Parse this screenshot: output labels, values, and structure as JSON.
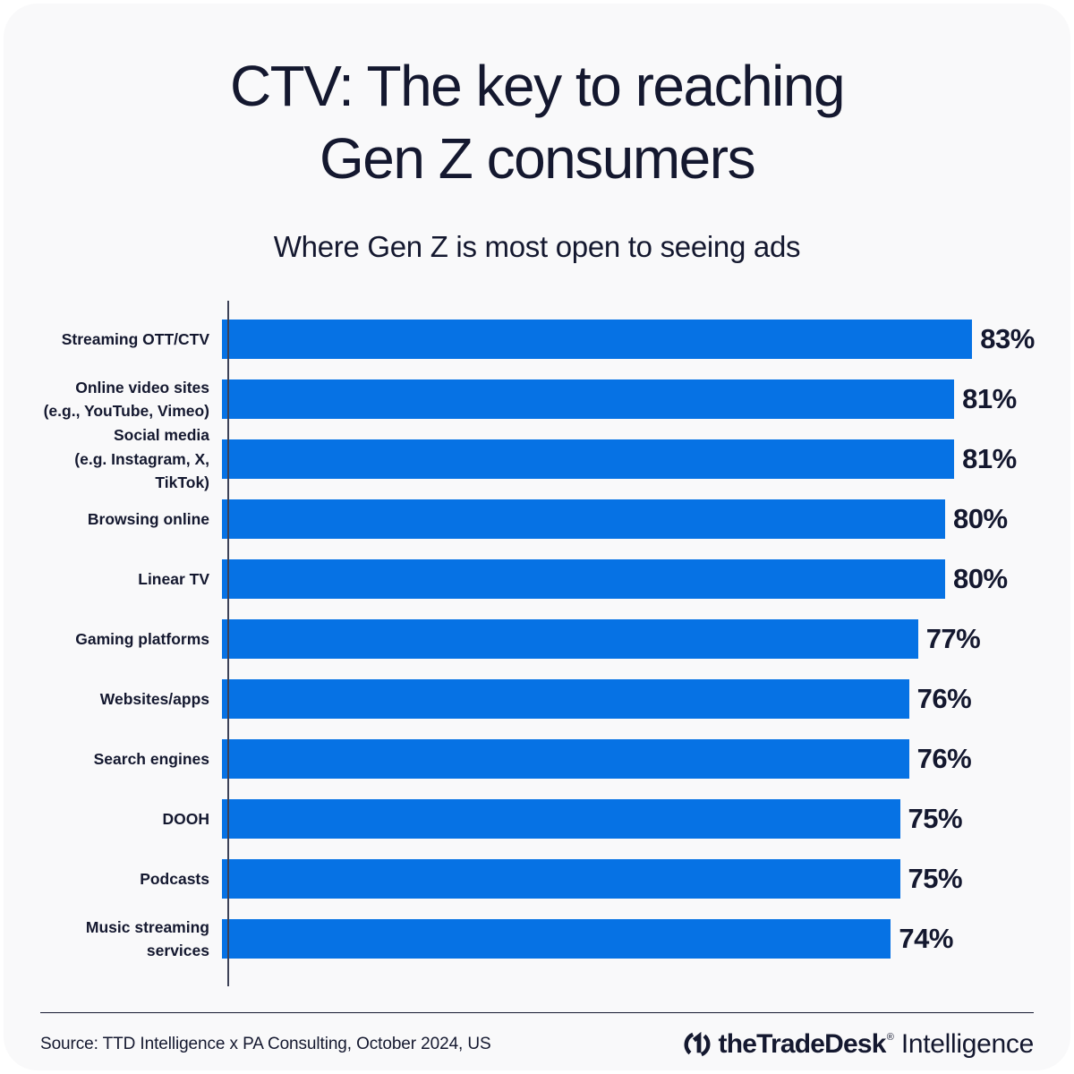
{
  "header": {
    "title": "CTV: The key to reaching\nGen Z consumers",
    "subtitle": "Where Gen Z is most open to seeing ads"
  },
  "chart_data": {
    "type": "bar",
    "orientation": "horizontal",
    "title": "Where Gen Z is most open to seeing ads",
    "categories": [
      "Streaming OTT/CTV",
      "Online video sites\n(e.g., YouTube, Vimeo)",
      "Social media\n(e.g. Instagram, X, TikTok)",
      "Browsing online",
      "Linear TV",
      "Gaming platforms",
      "Websites/apps",
      "Search engines",
      "DOOH",
      "Podcasts",
      "Music streaming services"
    ],
    "values": [
      83,
      81,
      81,
      80,
      80,
      77,
      76,
      76,
      75,
      75,
      74
    ],
    "value_suffix": "%",
    "xlim": [
      0,
      100
    ],
    "grid": false,
    "legend": false,
    "data_labels": true
  },
  "footer": {
    "source": "Source: TTD Intelligence x PA Consulting, October 2024, US",
    "brand_name": "theTradeDesk",
    "brand_registered": "®",
    "brand_product": "Intelligence",
    "logo_icon": "tradedesk-mark"
  },
  "colors": {
    "bar": "#0672E4",
    "text": "#14182F",
    "card_background": "#F9F9FA",
    "page_background": "#FFFFFF",
    "axis_line": "#3D4257"
  }
}
